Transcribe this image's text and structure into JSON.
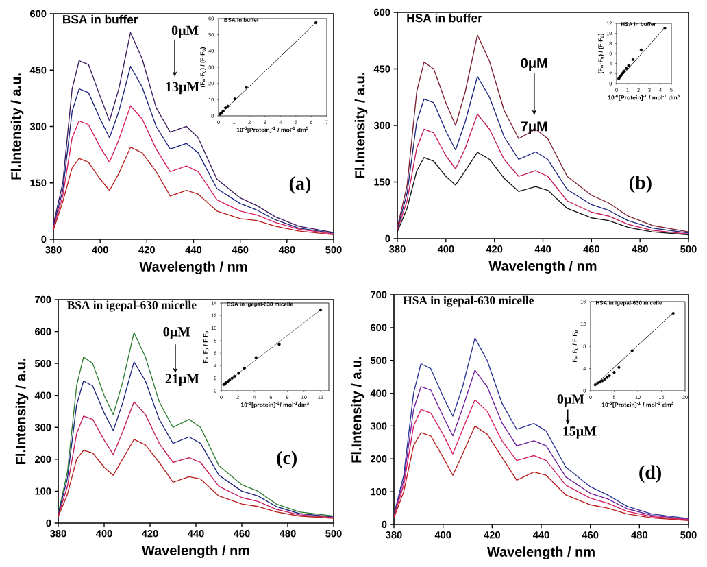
{
  "chart_data": [
    {
      "type": "line",
      "title": "BSA in buffer",
      "xlabel": "Wavelength / nm",
      "ylabel": "Fl.Intensity / a.u.",
      "x": [
        380,
        384,
        388,
        391,
        395,
        400,
        404,
        408,
        413,
        418,
        424,
        430,
        437,
        442,
        450,
        460,
        467,
        475,
        485,
        500
      ],
      "xlim": [
        380,
        500
      ],
      "xticks": [
        380,
        400,
        420,
        440,
        460,
        480,
        500
      ],
      "ylim": [
        0,
        600
      ],
      "yticks": [
        0,
        150,
        300,
        450,
        600
      ],
      "annotations": [
        "0μM",
        "13μM",
        "(a)"
      ],
      "series": [
        {
          "color": "#3a1a5c",
          "values": [
            40,
            150,
            400,
            475,
            465,
            380,
            315,
            400,
            550,
            480,
            350,
            285,
            300,
            270,
            160,
            110,
            90,
            60,
            35,
            18
          ]
        },
        {
          "color": "#1a237e",
          "values": [
            35,
            130,
            340,
            400,
            390,
            320,
            270,
            340,
            460,
            405,
            300,
            240,
            255,
            230,
            135,
            95,
            78,
            52,
            30,
            16
          ]
        },
        {
          "color": "#d81b60",
          "values": [
            30,
            115,
            270,
            315,
            305,
            245,
            205,
            265,
            355,
            320,
            240,
            180,
            195,
            180,
            105,
            75,
            65,
            45,
            27,
            14
          ]
        },
        {
          "color": "#b71c1c",
          "values": [
            25,
            100,
            190,
            215,
            205,
            160,
            130,
            175,
            245,
            230,
            180,
            115,
            130,
            120,
            75,
            55,
            50,
            35,
            22,
            12
          ]
        }
      ]
    },
    {
      "type": "scatter",
      "title": "BSA in buffer",
      "xlabel": "10$^{-6}$[Protein]$^{-1}$ / mol$^{-1}$ dm$^{3}$",
      "ylabel": "(F$_{∞}$-F$_{0}$) / (F-F$_{0}$)",
      "xlim": [
        0,
        7
      ],
      "xticks": [
        0,
        1,
        2,
        3,
        4,
        5,
        6,
        7
      ],
      "ylim": [
        0,
        60
      ],
      "yticks": [
        0,
        10,
        20,
        30,
        40,
        50,
        60
      ],
      "series": [
        {
          "type": "line",
          "color": "#000000",
          "x": [
            0,
            6.3
          ],
          "values": [
            0,
            57.5
          ]
        },
        {
          "type": "scatter",
          "color": "#000000",
          "x": [
            0.1,
            0.15,
            0.2,
            0.3,
            0.45,
            0.6,
            1.05,
            1.8,
            6.3
          ],
          "values": [
            1,
            1.5,
            2,
            3,
            5,
            6,
            10.5,
            17.5,
            57.5
          ]
        }
      ]
    },
    {
      "type": "line",
      "title": "HSA in buffer",
      "xlabel": "Wavelength / nm",
      "ylabel": "Fl.Intensity / a.u.",
      "x": [
        380,
        384,
        388,
        391,
        395,
        400,
        404,
        408,
        413,
        418,
        424,
        430,
        437,
        442,
        450,
        460,
        467,
        475,
        485,
        500
      ],
      "xlim": [
        380,
        500
      ],
      "xticks": [
        380,
        400,
        420,
        440,
        460,
        480,
        500
      ],
      "ylim": [
        0,
        600
      ],
      "yticks": [
        0,
        150,
        300,
        450,
        600
      ],
      "annotations": [
        "0μM",
        "7μM",
        "(b)"
      ],
      "series": [
        {
          "color": "#7b1f2e",
          "values": [
            30,
            140,
            390,
            468,
            450,
            360,
            300,
            390,
            540,
            470,
            340,
            265,
            290,
            265,
            165,
            115,
            95,
            60,
            35,
            18
          ]
        },
        {
          "color": "#1a237e",
          "values": [
            25,
            120,
            310,
            370,
            360,
            285,
            235,
            310,
            430,
            375,
            270,
            210,
            230,
            210,
            130,
            90,
            75,
            48,
            28,
            15
          ]
        },
        {
          "color": "#c2185b",
          "values": [
            22,
            100,
            240,
            290,
            280,
            220,
            185,
            240,
            330,
            290,
            210,
            165,
            180,
            165,
            100,
            70,
            60,
            38,
            22,
            12
          ]
        },
        {
          "color": "#111111",
          "values": [
            18,
            80,
            180,
            215,
            205,
            165,
            142,
            180,
            229,
            210,
            160,
            125,
            138,
            128,
            80,
            55,
            48,
            30,
            18,
            10
          ]
        }
      ]
    },
    {
      "type": "scatter",
      "title": "HSA in buffer",
      "xlabel": "10$^{-6}$[Protein]$^{-1}$ / mol$^{-1}$ dm$^{3}$",
      "ylabel": "(F$_{∞}$-F$_{0}$) / (F-F$_{0}$)",
      "xlim": [
        0,
        5
      ],
      "xticks": [
        0,
        1,
        2,
        3,
        4,
        5
      ],
      "ylim": [
        0,
        12
      ],
      "yticks": [
        0,
        2,
        4,
        6,
        8,
        10,
        12
      ],
      "series": [
        {
          "type": "line",
          "color": "#000000",
          "x": [
            0.2,
            4.4
          ],
          "values": [
            0.9,
            11.1
          ]
        },
        {
          "type": "scatter",
          "color": "#000000",
          "x": [
            0.2,
            0.3,
            0.4,
            0.5,
            0.6,
            0.7,
            0.9,
            1.1,
            1.5,
            2.25,
            4.4
          ],
          "values": [
            1.0,
            1.3,
            1.6,
            1.9,
            2.2,
            2.5,
            3.0,
            3.6,
            4.8,
            6.7,
            11
          ]
        }
      ]
    },
    {
      "type": "line",
      "title": "BSA in igepal-630 micelle",
      "xlabel": "Wavelength / nm",
      "ylabel": "Fl.Intensity / a.u.",
      "x": [
        380,
        384,
        388,
        391,
        395,
        400,
        404,
        408,
        413,
        418,
        424,
        430,
        437,
        442,
        450,
        460,
        467,
        475,
        485,
        500
      ],
      "xlim": [
        380,
        500
      ],
      "xticks": [
        380,
        400,
        420,
        440,
        460,
        480,
        500
      ],
      "ylim": [
        0,
        700
      ],
      "yticks": [
        0,
        100,
        200,
        300,
        400,
        500,
        600,
        700
      ],
      "annotations": [
        "0μM",
        "21μM",
        "(c)"
      ],
      "series": [
        {
          "color": "#2e7d32",
          "values": [
            30,
            160,
            430,
            520,
            500,
            400,
            340,
            440,
            597,
            520,
            380,
            300,
            325,
            300,
            180,
            120,
            100,
            60,
            35,
            22
          ]
        },
        {
          "color": "#1a237e",
          "values": [
            27,
            140,
            370,
            445,
            430,
            345,
            290,
            375,
            505,
            445,
            325,
            250,
            270,
            250,
            150,
            100,
            85,
            52,
            30,
            19
          ]
        },
        {
          "color": "#c2185b",
          "values": [
            23,
            115,
            280,
            335,
            325,
            260,
            215,
            285,
            380,
            340,
            250,
            190,
            205,
            190,
            115,
            80,
            68,
            43,
            26,
            17
          ]
        },
        {
          "color": "#b71c1c",
          "values": [
            20,
            90,
            200,
            228,
            220,
            175,
            150,
            200,
            262,
            245,
            190,
            128,
            145,
            138,
            85,
            60,
            52,
            35,
            22,
            15
          ]
        }
      ]
    },
    {
      "type": "scatter",
      "title": "BSA in igepal-630 micelle",
      "xlabel": "10$^{-6}$[protein]$^{-1}$/ mol$^{-1}$dm$^{3}$",
      "ylabel": "F$_{∞}$-F$_{0}$ / F-F$_{0}$",
      "xlim": [
        0,
        13
      ],
      "xticks": [
        0,
        2,
        4,
        6,
        8,
        10,
        12
      ],
      "ylim": [
        0,
        14
      ],
      "yticks": [
        0,
        2,
        4,
        6,
        8,
        10,
        12,
        14
      ],
      "series": [
        {
          "type": "line",
          "color": "#555555",
          "x": [
            0.3,
            12
          ],
          "values": [
            1.0,
            12.9
          ]
        },
        {
          "type": "scatter",
          "color": "#000000",
          "x": [
            0.3,
            0.4,
            0.5,
            0.6,
            0.8,
            1.0,
            1.3,
            1.6,
            2.1,
            2.8,
            4.2,
            7.0,
            12
          ],
          "values": [
            1.0,
            1.1,
            1.2,
            1.3,
            1.5,
            1.7,
            2.0,
            2.3,
            2.8,
            3.6,
            5.3,
            7.4,
            12.9
          ]
        }
      ]
    },
    {
      "type": "line",
      "title": "HSA in igepal-630 micelle",
      "xlabel": "Wavelength / nm",
      "ylabel": "Fl.Intensity / a.u.",
      "x": [
        380,
        384,
        388,
        391,
        395,
        400,
        404,
        408,
        413,
        418,
        424,
        430,
        437,
        442,
        450,
        460,
        467,
        475,
        485,
        500
      ],
      "xlim": [
        380,
        500
      ],
      "xticks": [
        380,
        400,
        420,
        440,
        460,
        480,
        500
      ],
      "ylim": [
        0,
        700
      ],
      "yticks": [
        0,
        100,
        200,
        300,
        400,
        500,
        600,
        700
      ],
      "annotations": [
        "0μM",
        "15μM",
        "(d)"
      ],
      "series": [
        {
          "color": "#283593",
          "values": [
            30,
            150,
            400,
            490,
            475,
            390,
            330,
            420,
            568,
            500,
            370,
            290,
            308,
            285,
            175,
            115,
            90,
            55,
            32,
            18
          ]
        },
        {
          "color": "#6a1b9a",
          "values": [
            27,
            135,
            350,
            420,
            410,
            330,
            270,
            355,
            470,
            420,
            310,
            240,
            255,
            240,
            145,
            95,
            78,
            48,
            28,
            16
          ]
        },
        {
          "color": "#d81b60",
          "values": [
            24,
            120,
            300,
            350,
            340,
            275,
            215,
            290,
            380,
            345,
            255,
            195,
            210,
            195,
            120,
            80,
            65,
            40,
            24,
            14
          ]
        },
        {
          "color": "#b71c1c",
          "values": [
            20,
            100,
            240,
            280,
            270,
            205,
            150,
            215,
            300,
            275,
            205,
            135,
            160,
            150,
            90,
            60,
            50,
            32,
            20,
            12
          ]
        }
      ]
    },
    {
      "type": "scatter",
      "title": "HSA in igepal-630 micelle",
      "xlabel": "10$^{-6}$[Protein]$^{-1}$ / mol$^{-1}$ dm$^{3}$",
      "ylabel": "F$_{∞}$-F$_{0}$ / F-F$_{0}$",
      "xlim": [
        0,
        20
      ],
      "xticks": [
        0,
        5,
        10,
        15,
        20
      ],
      "ylim": [
        0,
        16
      ],
      "yticks": [
        0,
        4,
        8,
        12,
        16
      ],
      "series": [
        {
          "type": "line",
          "color": "#000000",
          "x": [
            0.8,
            17.5
          ],
          "values": [
            0.9,
            14
          ]
        },
        {
          "type": "scatter",
          "color": "#000000",
          "x": [
            1,
            1.5,
            2,
            2.5,
            3,
            3.5,
            4,
            5,
            6,
            8.8,
            17.5
          ],
          "values": [
            1.1,
            1.4,
            1.6,
            1.8,
            2.1,
            2.4,
            2.7,
            3.3,
            4.2,
            7.2,
            13.9
          ]
        }
      ]
    }
  ]
}
